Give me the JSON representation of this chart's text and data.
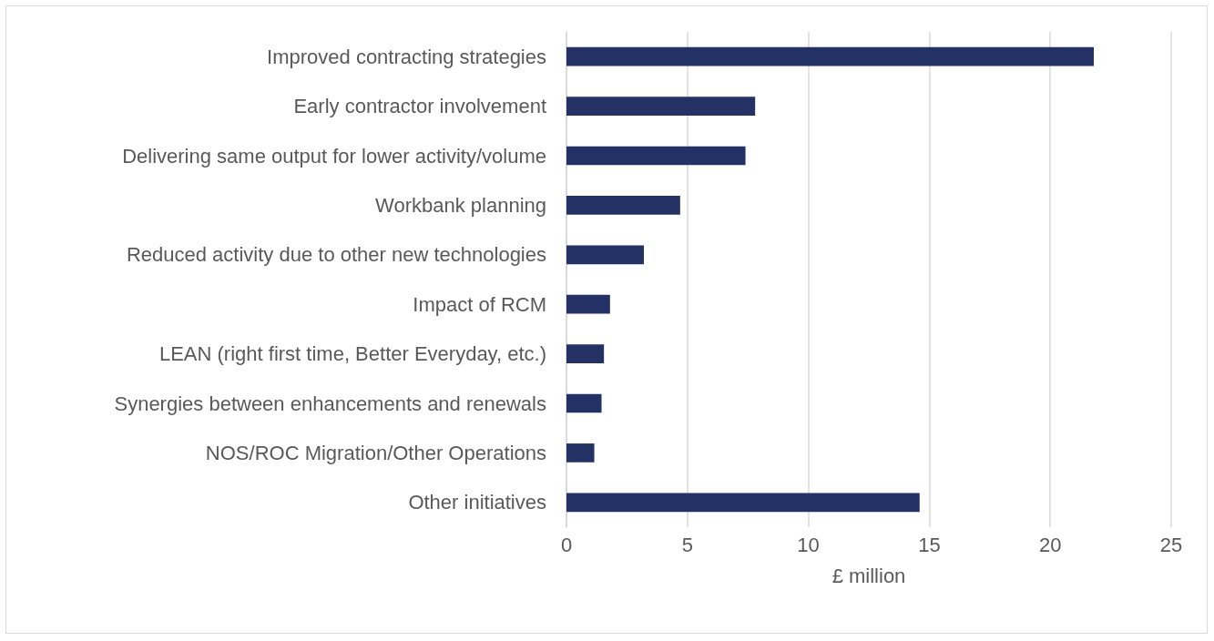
{
  "chart_data": {
    "type": "bar",
    "orientation": "horizontal",
    "xlabel": "£ million",
    "categories": [
      "Improved contracting strategies",
      "Early contractor involvement",
      "Delivering same output for lower activity/volume",
      "Workbank planning",
      "Reduced activity due to other new technologies",
      "Impact of RCM",
      "LEAN (right first time, Better Everyday, etc.)",
      "Synergies between enhancements and renewals",
      "NOS/ROC Migration/Other Operations",
      "Other initiatives"
    ],
    "values": [
      21.8,
      7.8,
      7.4,
      4.7,
      3.2,
      1.8,
      1.55,
      1.45,
      1.15,
      14.6
    ],
    "color": "#243165",
    "xlim": [
      0,
      25
    ],
    "xticks": [
      0,
      5,
      10,
      15,
      20,
      25
    ],
    "grid": "x"
  }
}
